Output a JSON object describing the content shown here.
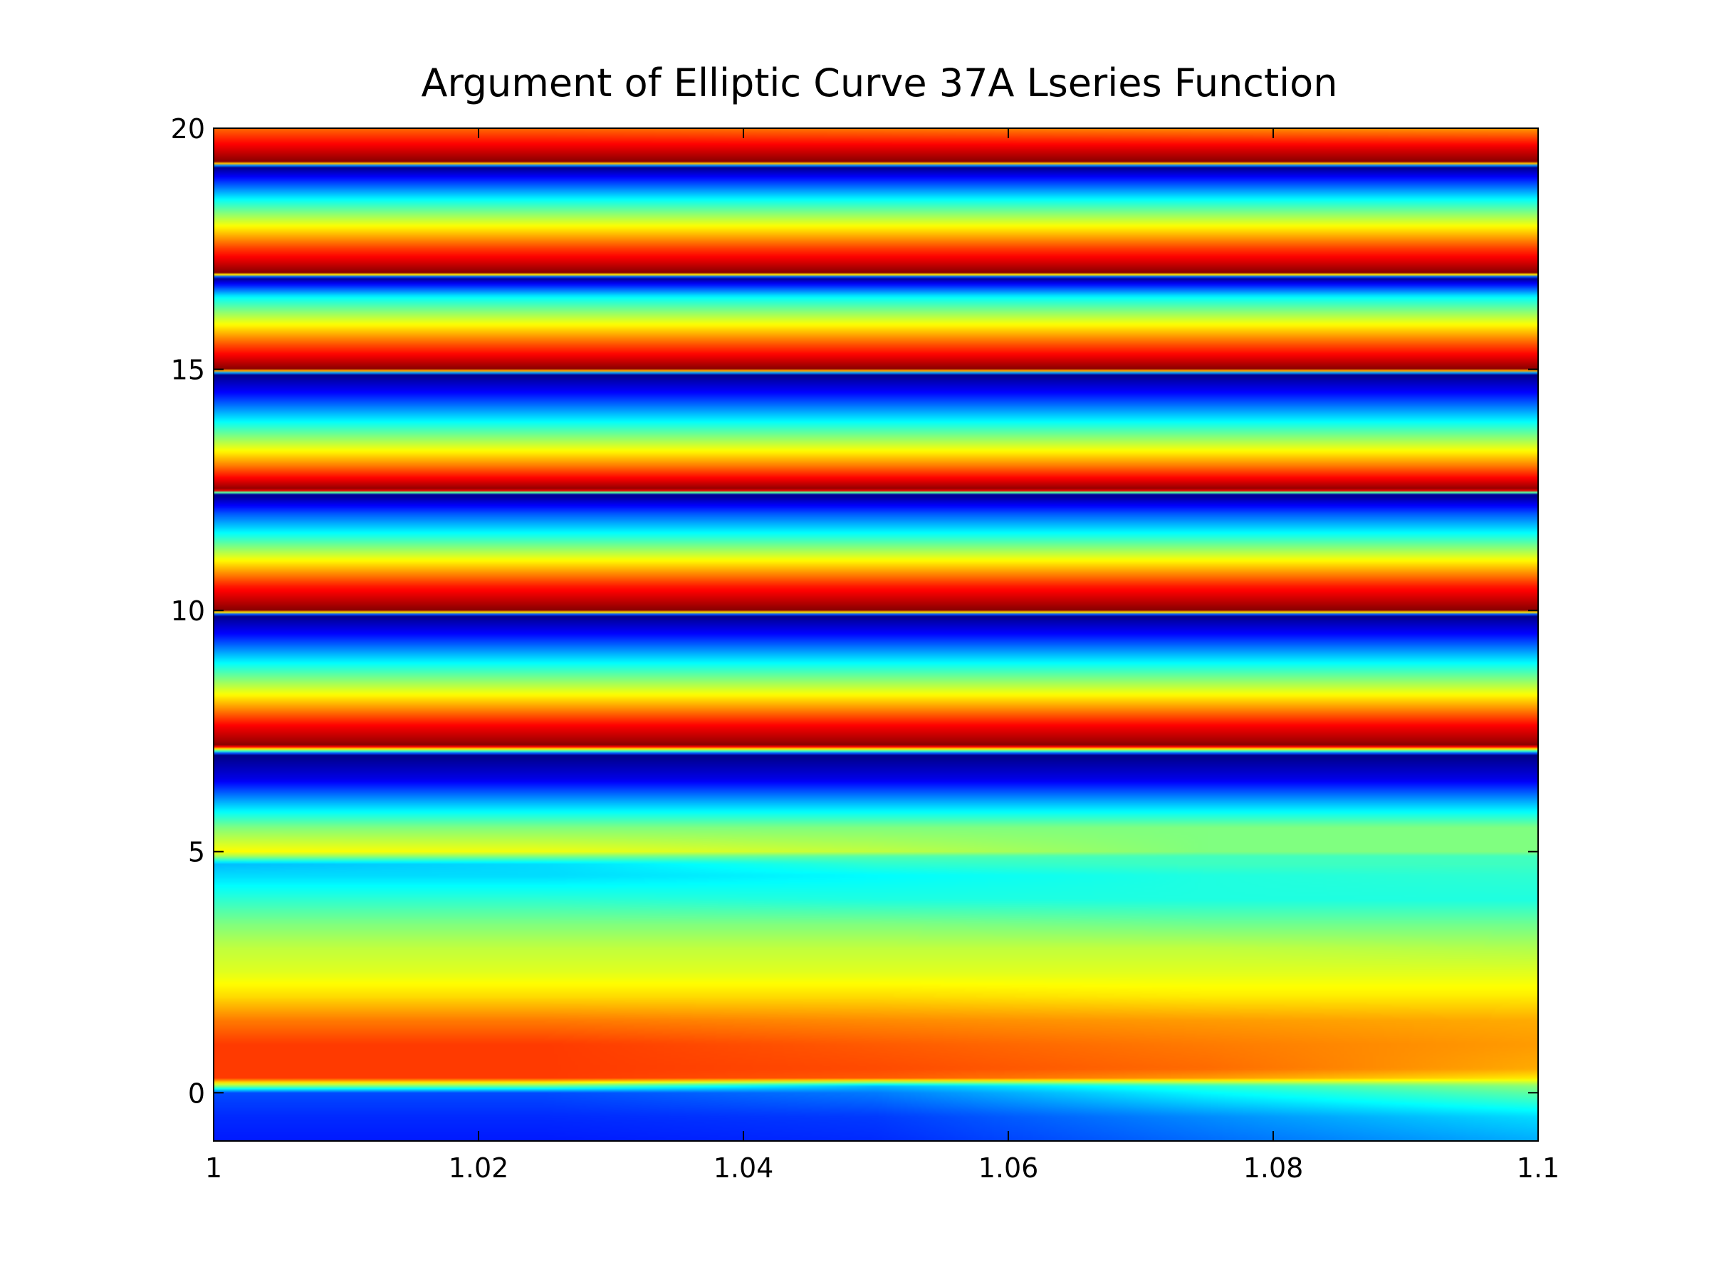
{
  "chart_data": {
    "type": "heatmap",
    "title": "Argument of Elliptic Curve 37A Lseries Function",
    "xlabel": "",
    "ylabel": "",
    "xlim": [
      1.0,
      1.1
    ],
    "ylim": [
      -1,
      20
    ],
    "x_ticks": [
      {
        "value": 1.0,
        "label": "1"
      },
      {
        "value": 1.02,
        "label": "1.02"
      },
      {
        "value": 1.04,
        "label": "1.04"
      },
      {
        "value": 1.06,
        "label": "1.06"
      },
      {
        "value": 1.08,
        "label": "1.08"
      },
      {
        "value": 1.1,
        "label": "1.1"
      }
    ],
    "y_ticks": [
      {
        "value": 0,
        "label": "0"
      },
      {
        "value": 5,
        "label": "5"
      },
      {
        "value": 10,
        "label": "10"
      },
      {
        "value": 15,
        "label": "15"
      },
      {
        "value": 20,
        "label": "20"
      }
    ],
    "colormap": "jet",
    "value_range": [
      -3.14159,
      3.14159
    ],
    "x_samples": [
      1.0,
      1.025,
      1.05,
      1.075,
      1.1
    ],
    "y_samples": [
      -1.0,
      -0.5,
      0.0,
      0.15,
      0.3,
      0.5,
      1.0,
      1.5,
      2.0,
      2.5,
      3.0,
      3.5,
      4.0,
      4.5,
      4.75,
      4.9,
      5.0,
      5.5,
      6.0,
      6.5,
      7.0,
      7.2,
      7.3,
      7.6,
      8.0,
      8.5,
      9.0,
      9.5,
      9.9,
      10.0,
      10.5,
      11.0,
      11.5,
      12.0,
      12.4,
      12.5,
      13.0,
      13.5,
      14.0,
      14.5,
      14.9,
      15.0,
      15.5,
      16.0,
      16.5,
      16.9,
      17.0,
      17.5,
      18.0,
      18.5,
      19.0,
      19.2,
      19.3,
      19.6,
      20.0
    ],
    "values": [
      [
        -2.2,
        -2.2,
        -2.1,
        -1.7,
        -1.3
      ],
      [
        -2.1,
        -2.1,
        -2.0,
        -1.5,
        -1.0
      ],
      [
        -1.9,
        -1.9,
        -1.6,
        -0.8,
        -0.2
      ],
      [
        0.2,
        0.0,
        -1.2,
        -0.5,
        0.1
      ],
      [
        2.0,
        2.0,
        1.8,
        1.4,
        0.9
      ],
      [
        2.0,
        2.0,
        1.9,
        1.7,
        1.3
      ],
      [
        2.0,
        2.0,
        1.8,
        1.6,
        1.4
      ],
      [
        1.6,
        1.6,
        1.5,
        1.4,
        1.3
      ],
      [
        1.0,
        1.0,
        1.0,
        0.9,
        0.9
      ],
      [
        0.6,
        0.6,
        0.6,
        0.6,
        0.6
      ],
      [
        0.4,
        0.4,
        0.4,
        0.4,
        0.3
      ],
      [
        0.0,
        0.0,
        0.0,
        -0.1,
        -0.1
      ],
      [
        -0.5,
        -0.5,
        -0.6,
        -0.6,
        -0.6
      ],
      [
        -1.0,
        -1.0,
        -0.8,
        -0.6,
        -0.5
      ],
      [
        -1.2,
        -1.0,
        -0.5,
        -0.4,
        -0.4
      ],
      [
        0.2,
        0.0,
        -0.3,
        -0.4,
        -0.4
      ],
      [
        0.8,
        0.7,
        0.4,
        0.0,
        0.0
      ],
      [
        0.0,
        0.0,
        0.0,
        0.0,
        0.0
      ],
      [
        -1.2,
        -1.2,
        -1.2,
        -1.2,
        -1.2
      ],
      [
        -2.5,
        -2.5,
        -2.5,
        -2.5,
        -2.5
      ],
      [
        -3.1,
        -3.1,
        -3.1,
        -3.1,
        -3.1
      ],
      [
        3.1,
        3.1,
        3.1,
        3.1,
        3.1
      ],
      [
        2.9,
        2.9,
        2.9,
        2.9,
        2.9
      ],
      [
        2.4,
        2.4,
        2.4,
        2.4,
        2.4
      ],
      [
        1.4,
        1.4,
        1.4,
        1.4,
        1.4
      ],
      [
        0.2,
        0.2,
        0.2,
        0.2,
        0.2
      ],
      [
        -1.0,
        -1.0,
        -1.0,
        -1.0,
        -1.0
      ],
      [
        -2.3,
        -2.3,
        -2.3,
        -2.3,
        -2.3
      ],
      [
        -3.1,
        -3.1,
        -3.1,
        -3.1,
        -3.1
      ],
      [
        3.1,
        3.1,
        3.1,
        3.1,
        3.1
      ],
      [
        2.2,
        2.2,
        2.2,
        2.2,
        2.2
      ],
      [
        0.9,
        0.9,
        0.9,
        0.9,
        0.9
      ],
      [
        -0.5,
        -0.5,
        -0.5,
        -0.5,
        -0.5
      ],
      [
        -1.8,
        -1.8,
        -1.8,
        -1.8,
        -1.8
      ],
      [
        -3.1,
        -3.1,
        -3.1,
        -3.1,
        -3.1
      ],
      [
        3.1,
        3.1,
        3.1,
        3.1,
        3.1
      ],
      [
        1.6,
        1.6,
        1.6,
        1.6,
        1.6
      ],
      [
        0.3,
        0.3,
        0.3,
        0.3,
        0.3
      ],
      [
        -1.0,
        -1.0,
        -1.0,
        -1.0,
        -1.0
      ],
      [
        -2.3,
        -2.3,
        -2.3,
        -2.3,
        -2.3
      ],
      [
        -3.1,
        -3.1,
        -3.1,
        -3.1,
        -3.1
      ],
      [
        3.1,
        3.1,
        3.1,
        3.1,
        3.1
      ],
      [
        1.9,
        1.9,
        1.9,
        1.9,
        1.9
      ],
      [
        0.6,
        0.6,
        0.6,
        0.6,
        0.6
      ],
      [
        -0.8,
        -0.8,
        -0.8,
        -0.8,
        -0.8
      ],
      [
        -3.1,
        -3.1,
        -3.1,
        -3.1,
        -3.1
      ],
      [
        3.1,
        3.1,
        3.1,
        3.1,
        3.1
      ],
      [
        2.0,
        2.0,
        2.0,
        2.0,
        2.0
      ],
      [
        0.7,
        0.7,
        0.7,
        0.7,
        0.7
      ],
      [
        -0.7,
        -0.7,
        -0.7,
        -0.7,
        -0.7
      ],
      [
        -2.4,
        -2.4,
        -2.4,
        -2.4,
        -2.4
      ],
      [
        -3.1,
        -3.1,
        -3.1,
        -3.1,
        -3.1
      ],
      [
        3.1,
        3.1,
        3.1,
        3.1,
        3.1
      ],
      [
        2.5,
        2.5,
        2.5,
        2.5,
        2.5
      ],
      [
        1.7,
        1.7,
        1.6,
        1.5,
        1.4
      ]
    ]
  }
}
